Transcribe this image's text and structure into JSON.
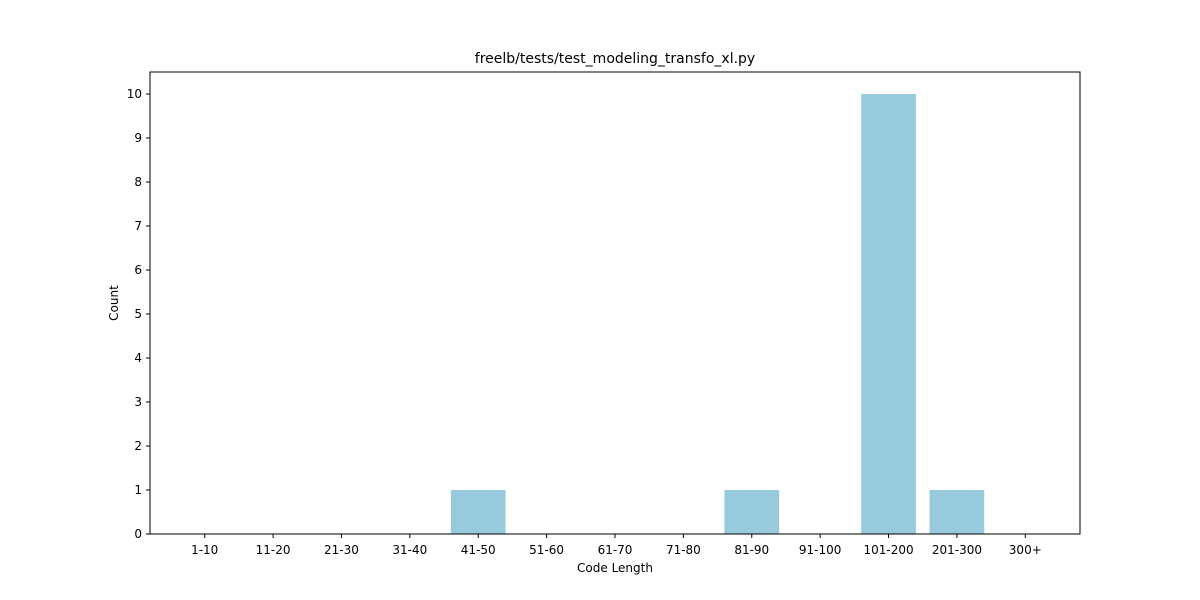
{
  "chart_data": {
    "type": "bar",
    "title": "freelb/tests/test_modeling_transfo_xl.py",
    "xlabel": "Code Length",
    "ylabel": "Count",
    "categories": [
      "1-10",
      "11-20",
      "21-30",
      "31-40",
      "41-50",
      "51-60",
      "61-70",
      "71-80",
      "81-90",
      "91-100",
      "101-200",
      "201-300",
      "300+"
    ],
    "values": [
      0,
      0,
      0,
      0,
      1,
      0,
      0,
      0,
      1,
      0,
      10,
      1,
      0
    ],
    "ylim": [
      0,
      10.5
    ],
    "yticks": [
      0,
      1,
      2,
      3,
      4,
      5,
      6,
      7,
      8,
      9,
      10
    ],
    "grid": false,
    "legend": "none",
    "bar_color": "#96cadc"
  }
}
